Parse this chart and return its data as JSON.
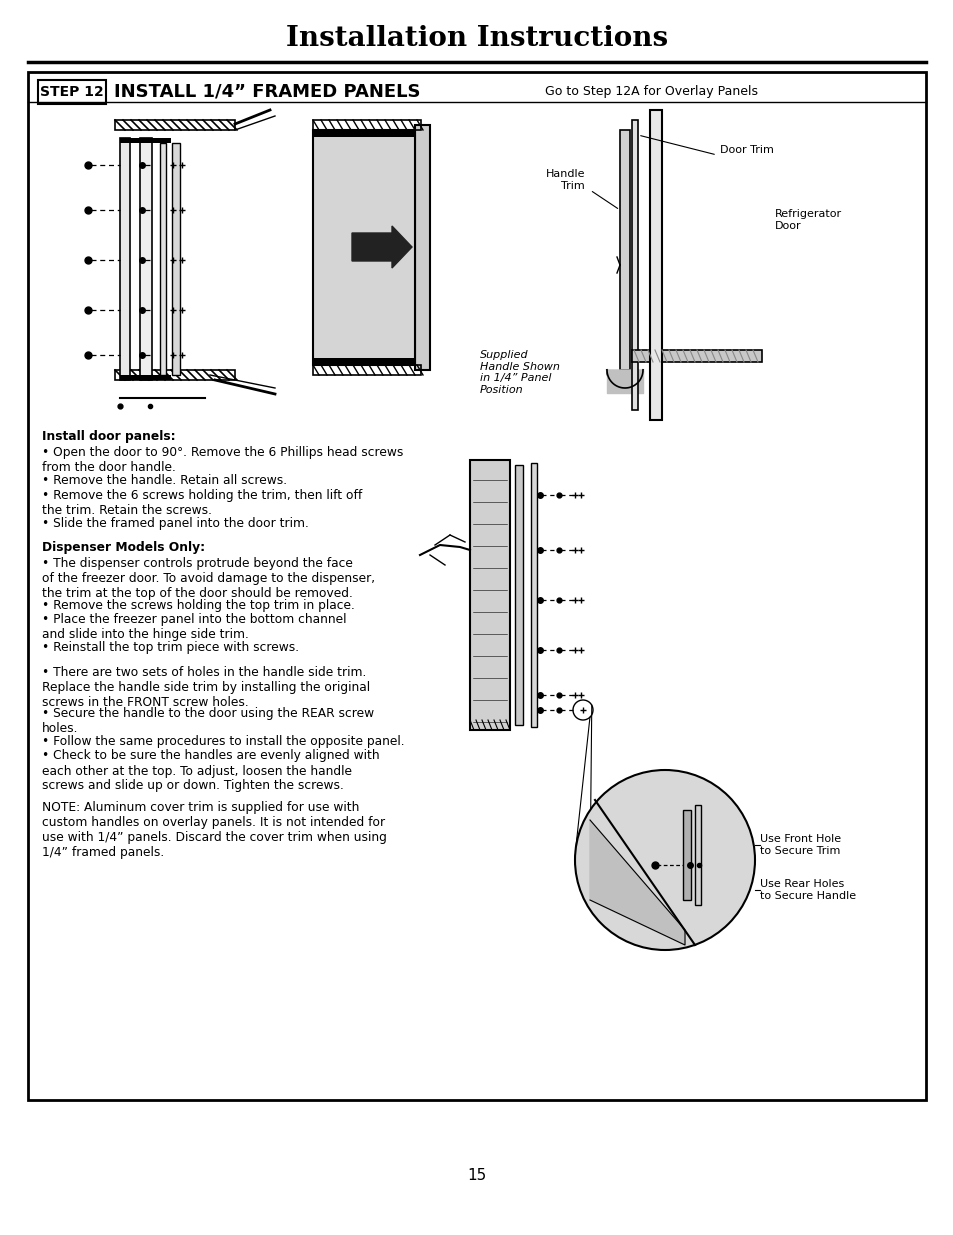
{
  "title": "Installation Instructions",
  "page_number": "15",
  "step_box_text": "STEP 12",
  "step_title": "INSTALL 1/4” FRAMED PANELS",
  "step_subtitle": "Go to Step 12A for Overlay Panels",
  "background_color": "#ffffff",
  "text_color": "#000000",
  "section1_header": "Install door panels:",
  "section1_bullets": [
    "Open the door to 90°. Remove the 6 Phillips head screws\nfrom the door handle.",
    "Remove the handle. Retain all screws.",
    "Remove the 6 screws holding the trim, then lift off\nthe trim. Retain the screws.",
    "Slide the framed panel into the door trim."
  ],
  "section2_header": "Dispenser Models Only:",
  "section2_bullets": [
    "The dispenser controls protrude beyond the face\nof the freezer door. To avoid damage to the dispenser,\nthe trim at the top of the door should be removed.",
    "Remove the screws holding the top trim in place.",
    "Place the freezer panel into the bottom channel\nand slide into the hinge side trim.",
    "Reinstall the top trim piece with screws."
  ],
  "section3_bullets": [
    "There are two sets of holes in the handle side trim.\nReplace the handle side trim by installing the original\nscrews in the FRONT screw holes.",
    "Secure the handle to the door using the REAR screw\nholes.",
    "Follow the same procedures to install the opposite panel.",
    "Check to be sure the handles are evenly aligned with\neach other at the top. To adjust, loosen the handle\nscrews and slide up or down. Tighten the screws."
  ],
  "note_text": "NOTE: Aluminum cover trim is supplied for use with\ncustom handles on overlay panels. It is not intended for\nuse with 1/4” panels. Discard the cover trim when using\n1/4” framed panels.",
  "handle_trim_label": "Handle\nTrim",
  "door_trim_label": "Door Trim",
  "refrigerator_door_label": "Refrigerator\nDoor",
  "supplied_handle_label": "Supplied\nHandle Shown\nin 1/4” Panel\nPosition",
  "use_front_hole_label": "Use Front Hole\nto Secure Trim",
  "use_rear_holes_label": "Use Rear Holes\nto Secure Handle"
}
